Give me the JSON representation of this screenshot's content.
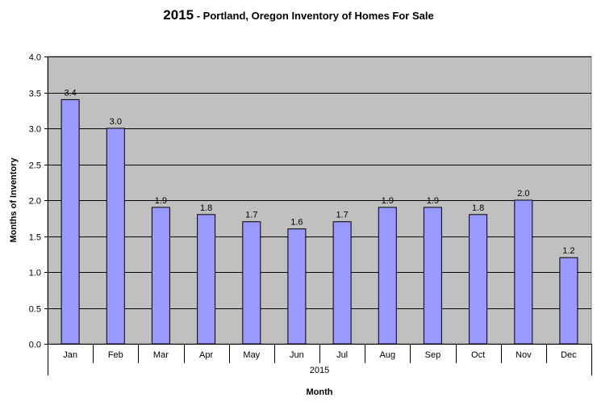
{
  "chart_data": {
    "type": "bar",
    "title_year": "2015",
    "title_rest": " - Portland, Oregon Inventory of Homes For Sale",
    "categories": [
      "Jan",
      "Feb",
      "Mar",
      "Apr",
      "May",
      "Jun",
      "Jul",
      "Aug",
      "Sep",
      "Oct",
      "Nov",
      "Dec"
    ],
    "values": [
      3.4,
      3.0,
      1.9,
      1.8,
      1.7,
      1.6,
      1.7,
      1.9,
      1.9,
      1.8,
      2.0,
      1.2
    ],
    "data_labels": [
      "3.4",
      "3.0",
      "1.9",
      "1.8",
      "1.7",
      "1.6",
      "1.7",
      "1.9",
      "1.9",
      "1.8",
      "2.0",
      "1.2"
    ],
    "y_ticks": [
      "0.0",
      "0.5",
      "1.0",
      "1.5",
      "2.0",
      "2.5",
      "3.0",
      "3.5",
      "4.0"
    ],
    "ylim": [
      0,
      4
    ],
    "xlabel": "Month",
    "ylabel": "Months of Inventory",
    "group_label": "2015",
    "grid": true,
    "colors": {
      "plot_bg": "#c0c0c0",
      "bar_fill": "#9999ff",
      "bar_stroke": "#000000",
      "grid": "#000000"
    }
  }
}
